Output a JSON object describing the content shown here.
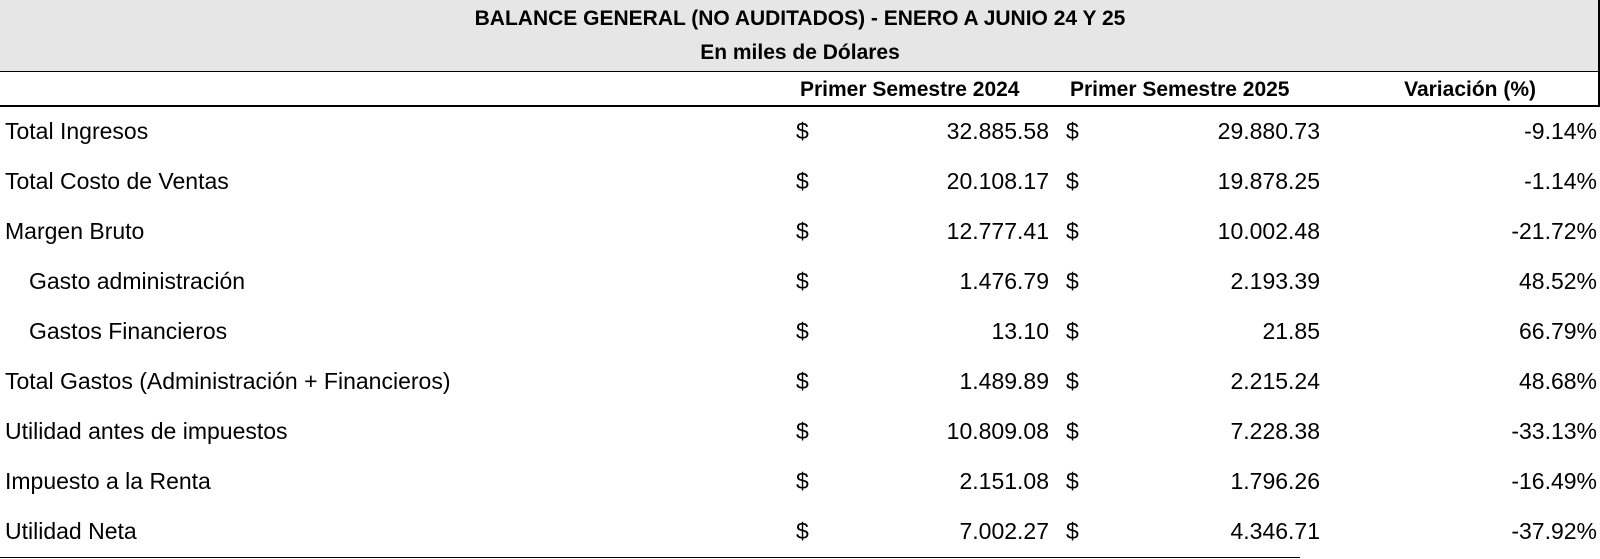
{
  "title": "BALANCE GENERAL (NO AUDITADOS) - ENERO A JUNIO 24 Y 25",
  "subtitle": "En miles de Dólares",
  "columns": [
    "Primer Semestre 2024",
    "Primer Semestre 2025",
    "Variación (%)"
  ],
  "currency_symbol": "$",
  "rows": [
    {
      "label": "Total Ingresos",
      "indent": false,
      "v2024": "32.885.58",
      "v2025": "29.880.73",
      "variation": "-9.14%"
    },
    {
      "label": "Total Costo de Ventas",
      "indent": false,
      "v2024": "20.108.17",
      "v2025": "19.878.25",
      "variation": "-1.14%"
    },
    {
      "label": "Margen Bruto",
      "indent": false,
      "v2024": "12.777.41",
      "v2025": "10.002.48",
      "variation": "-21.72%"
    },
    {
      "label": "Gasto administración",
      "indent": true,
      "v2024": "1.476.79",
      "v2025": "2.193.39",
      "variation": "48.52%"
    },
    {
      "label": "Gastos Financieros",
      "indent": true,
      "v2024": "13.10",
      "v2025": "21.85",
      "variation": "66.79%"
    },
    {
      "label": "Total Gastos (Administración + Financieros)",
      "indent": false,
      "v2024": "1.489.89",
      "v2025": "2.215.24",
      "variation": "48.68%"
    },
    {
      "label": "Utilidad antes de impuestos",
      "indent": false,
      "v2024": "10.809.08",
      "v2025": "7.228.38",
      "variation": "-33.13%"
    },
    {
      "label": "Impuesto a la Renta",
      "indent": false,
      "v2024": "2.151.08",
      "v2025": "1.796.26",
      "variation": "-16.49%"
    },
    {
      "label": "Utilidad Neta",
      "indent": false,
      "v2024": "7.002.27",
      "v2025": "4.346.71",
      "variation": "-37.92%"
    }
  ]
}
